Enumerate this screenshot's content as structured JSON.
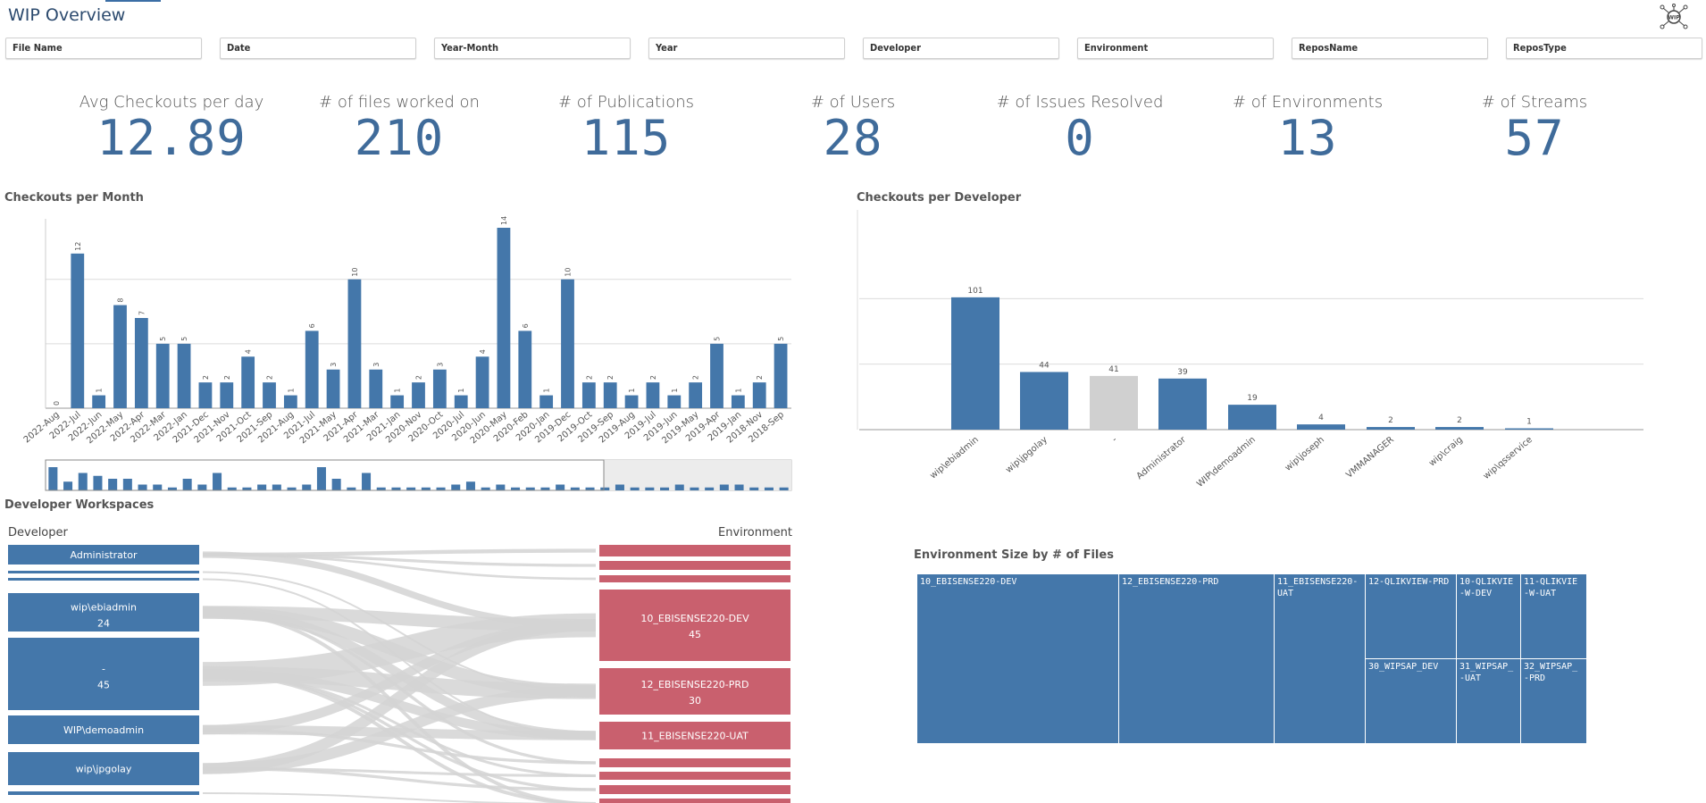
{
  "header": {
    "title": "WIP Overview",
    "logo_icon": "wip-network-logo-icon"
  },
  "filters": [
    "File Name",
    "Date",
    "Year-Month",
    "Year",
    "Developer",
    "Environment",
    "ReposName",
    "ReposType"
  ],
  "kpis": [
    {
      "label": "Avg Checkouts per day",
      "value": "12.89"
    },
    {
      "label": "# of files worked on",
      "value": "210"
    },
    {
      "label": "# of Publications",
      "value": "115"
    },
    {
      "label": "# of Users",
      "value": "28"
    },
    {
      "label": "# of Issues Resolved",
      "value": "0"
    },
    {
      "label": "# of Environments",
      "value": "13"
    },
    {
      "label": "# of Streams",
      "value": "57"
    }
  ],
  "colors": {
    "bar": "#4477aa",
    "selected_bar": "#d0d0d0",
    "env_node": "#c9606e",
    "link": "#d3d3d3",
    "title": "#2c4a6e"
  },
  "sections": {
    "month_chart": "Checkouts per Month",
    "developer_chart": "Checkouts per Developer",
    "workspaces": "Developer Workspaces",
    "treemap": "Environment Size by # of Files"
  },
  "chart_data": [
    {
      "type": "bar",
      "title": "Checkouts per Month",
      "categories": [
        "2022-Aug",
        "2022-Jul",
        "2022-Jun",
        "2022-May",
        "2022-Apr",
        "2022-Mar",
        "2022-Jan",
        "2021-Dec",
        "2021-Nov",
        "2021-Oct",
        "2021-Sep",
        "2021-Aug",
        "2021-Jul",
        "2021-May",
        "2021-Apr",
        "2021-Mar",
        "2021-Jan",
        "2020-Nov",
        "2020-Oct",
        "2020-Jul",
        "2020-Jun",
        "2020-May",
        "2020-Feb",
        "2020-Jan",
        "2019-Dec",
        "2019-Oct",
        "2019-Sep",
        "2019-Aug",
        "2019-Jul",
        "2019-Jun",
        "2019-May",
        "2019-Apr",
        "2019-Jan",
        "2018-Nov",
        "2018-Sep"
      ],
      "values": [
        0,
        12,
        1,
        8,
        7,
        5,
        5,
        2,
        2,
        4,
        2,
        1,
        6,
        3,
        10,
        3,
        1,
        2,
        3,
        1,
        4,
        14,
        6,
        1,
        10,
        2,
        2,
        1,
        2,
        1,
        2,
        5,
        1,
        2,
        5
      ],
      "ylim": [
        0,
        14
      ],
      "grid": true,
      "minimap_values": [
        8,
        3,
        6,
        5,
        4,
        4,
        2,
        2,
        1,
        4,
        2,
        6,
        1,
        1,
        2,
        2,
        1,
        2,
        8,
        4,
        1,
        6,
        1,
        1,
        1,
        1,
        1,
        2,
        3,
        1,
        2,
        1,
        1,
        1,
        2,
        1,
        1,
        1,
        2,
        1,
        1,
        1,
        2,
        1,
        1,
        2,
        2,
        1,
        1,
        1
      ]
    },
    {
      "type": "bar",
      "title": "Checkouts per Developer",
      "categories": [
        "wip\\ebiadmin",
        "wip\\jpgolay",
        "-",
        "Administrator",
        "WIP\\demoadmin",
        "wip\\joseph",
        "VMMANAGER",
        "wip\\craig",
        "wip\\qsservice"
      ],
      "values": [
        101,
        44,
        41,
        39,
        19,
        4,
        2,
        2,
        1
      ],
      "ylim": [
        0,
        150
      ],
      "grid": true
    },
    {
      "type": "treemap",
      "title": "Environment Size by # of Files",
      "items": [
        "10_EBISENSE220-DEV",
        "12_EBISENSE220-PRD",
        "11_EBISENSE220-UAT",
        "12-QLIKVIEW-PRD",
        "10-QLIKVIE-W-DEV",
        "11-QLIKVIE-W-UAT",
        "30_WIPSAP_DEV",
        "31_WIPSAP_-UAT",
        "32_WIPSAP_-PRD"
      ]
    }
  ],
  "sankey": {
    "left_header": "Developer",
    "right_header": "Environment",
    "left_nodes": [
      {
        "label": "Administrator",
        "value": ""
      },
      {
        "label": "",
        "value": ""
      },
      {
        "label": "",
        "value": ""
      },
      {
        "label": "wip\\ebiadmin",
        "value": "24"
      },
      {
        "label": "-",
        "value": "45"
      },
      {
        "label": "WIP\\demoadmin",
        "value": ""
      },
      {
        "label": "wip\\jpgolay",
        "value": ""
      },
      {
        "label": "",
        "value": ""
      }
    ],
    "right_nodes": [
      {
        "label": "",
        "value": ""
      },
      {
        "label": "",
        "value": ""
      },
      {
        "label": "",
        "value": ""
      },
      {
        "label": "10_EBISENSE220-DEV",
        "value": "45"
      },
      {
        "label": "12_EBISENSE220-PRD",
        "value": "30"
      },
      {
        "label": "11_EBISENSE220-UAT",
        "value": ""
      },
      {
        "label": "",
        "value": ""
      },
      {
        "label": "",
        "value": ""
      },
      {
        "label": "",
        "value": ""
      },
      {
        "label": "",
        "value": ""
      }
    ]
  }
}
